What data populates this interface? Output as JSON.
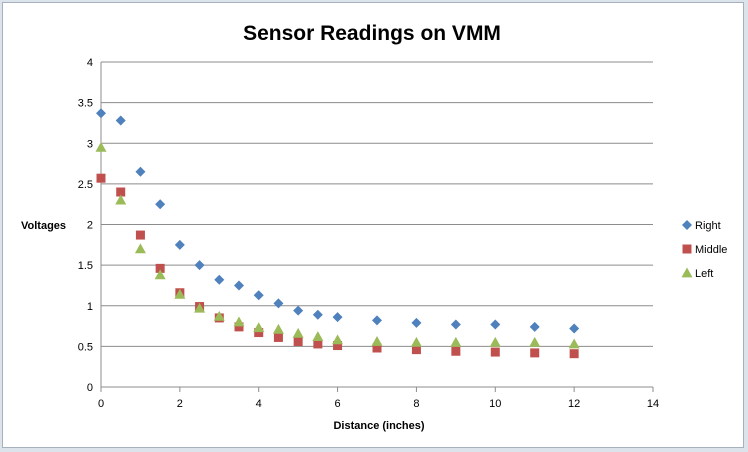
{
  "chart_data": {
    "type": "scatter",
    "title": "Sensor Readings on VMM",
    "xlabel": "Distance  (inches)",
    "ylabel": "Voltages",
    "xlim": [
      0,
      14
    ],
    "ylim": [
      0,
      4
    ],
    "xticks": [
      0,
      2,
      4,
      6,
      8,
      10,
      12,
      14
    ],
    "yticks": [
      0,
      0.5,
      1,
      1.5,
      2,
      2.5,
      3,
      3.5,
      4
    ],
    "grid": "horizontal",
    "legend_position": "right",
    "series": [
      {
        "name": "Right",
        "marker": "diamond",
        "color": "#4f81bd",
        "x": [
          0,
          0.5,
          1,
          1.5,
          2,
          2.5,
          3,
          3.5,
          4,
          4.5,
          5,
          5.5,
          6,
          7,
          8,
          9,
          10,
          11,
          12
        ],
        "y": [
          3.37,
          3.28,
          2.65,
          2.25,
          1.75,
          1.5,
          1.32,
          1.25,
          1.13,
          1.03,
          0.94,
          0.89,
          0.86,
          0.82,
          0.79,
          0.77,
          0.77,
          0.74,
          0.72
        ]
      },
      {
        "name": "Middle",
        "marker": "square",
        "color": "#c0504d",
        "x": [
          0,
          0.5,
          1,
          1.5,
          2,
          2.5,
          3,
          3.5,
          4,
          4.5,
          5,
          5.5,
          6,
          7,
          8,
          9,
          10,
          11,
          12
        ],
        "y": [
          2.57,
          2.4,
          1.87,
          1.46,
          1.16,
          0.99,
          0.85,
          0.74,
          0.67,
          0.61,
          0.56,
          0.53,
          0.51,
          0.48,
          0.46,
          0.44,
          0.43,
          0.42,
          0.41
        ]
      },
      {
        "name": "Left",
        "marker": "triangle",
        "color": "#9bbb59",
        "x": [
          0,
          0.5,
          1,
          1.5,
          2,
          2.5,
          3,
          3.5,
          4,
          4.5,
          5,
          5.5,
          6,
          7,
          8,
          9,
          10,
          11,
          12
        ],
        "y": [
          2.95,
          2.3,
          1.7,
          1.38,
          1.14,
          0.97,
          0.87,
          0.8,
          0.73,
          0.71,
          0.66,
          0.62,
          0.58,
          0.56,
          0.55,
          0.55,
          0.55,
          0.55,
          0.53
        ]
      }
    ]
  }
}
